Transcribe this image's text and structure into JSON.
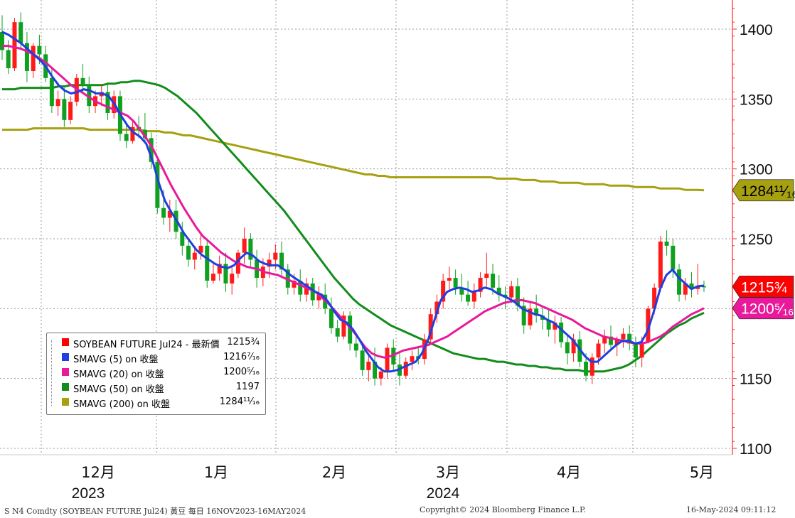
{
  "chart_data": {
    "type": "candlestick",
    "y_axis": {
      "ticks": [
        1100,
        1150,
        1200,
        1250,
        1300,
        1350,
        1400
      ],
      "ylim": [
        1095,
        1420
      ],
      "side": "right"
    },
    "x_axis": {
      "month_labels": [
        "12月",
        "1月",
        "2月",
        "3月",
        "4月",
        "5月"
      ],
      "year_labels": [
        "2023",
        "2024"
      ]
    },
    "grid": true,
    "legend": {
      "placement": "bottom-left",
      "entries": [
        {
          "name": "SOYBEAN FUTURE Jul24 - 最新價",
          "value": "1215¾",
          "color": "#ff0000"
        },
        {
          "name": "SMAVG (5)  on 收盤",
          "value": "1216⁷⁄₁₆",
          "color": "#1f3fe0"
        },
        {
          "name": "SMAVG (20)  on 收盤",
          "value": "1200⁵⁄₁₆",
          "color": "#e8199a"
        },
        {
          "name": "SMAVG (50)  on 收盤",
          "value": "1197",
          "color": "#128c1c"
        },
        {
          "name": "SMAVG (200)  on 收盤",
          "value": "1284¹¹⁄₁₆",
          "color": "#a7a010"
        }
      ]
    },
    "last_value_tags": [
      {
        "label": "1284¹¹⁄₁₆",
        "value": 1284.69,
        "color": "#a7a010",
        "text_color": "#000000"
      },
      {
        "label": "1215¾",
        "value": 1215.75,
        "color": "#ff0000",
        "text_color": "#ffffff"
      },
      {
        "label": "1200⁵⁄₁₆",
        "value": 1200.31,
        "color": "#e8199a",
        "text_color": "#ffffff"
      }
    ],
    "candles": [
      [
        1398,
        1410,
        1378,
        1385
      ],
      [
        1385,
        1392,
        1368,
        1372
      ],
      [
        1372,
        1408,
        1370,
        1405
      ],
      [
        1405,
        1412,
        1385,
        1390
      ],
      [
        1390,
        1398,
        1362,
        1370
      ],
      [
        1370,
        1390,
        1365,
        1388
      ],
      [
        1388,
        1396,
        1375,
        1382
      ],
      [
        1382,
        1388,
        1362,
        1365
      ],
      [
        1365,
        1372,
        1340,
        1345
      ],
      [
        1345,
        1356,
        1338,
        1350
      ],
      [
        1350,
        1358,
        1330,
        1335
      ],
      [
        1335,
        1352,
        1332,
        1348
      ],
      [
        1348,
        1368,
        1345,
        1365
      ],
      [
        1365,
        1375,
        1355,
        1360
      ],
      [
        1360,
        1366,
        1340,
        1345
      ],
      [
        1345,
        1356,
        1340,
        1352
      ],
      [
        1352,
        1360,
        1345,
        1355
      ],
      [
        1355,
        1362,
        1335,
        1340
      ],
      [
        1340,
        1356,
        1336,
        1352
      ],
      [
        1352,
        1356,
        1320,
        1325
      ],
      [
        1325,
        1332,
        1315,
        1320
      ],
      [
        1320,
        1335,
        1318,
        1330
      ],
      [
        1330,
        1338,
        1322,
        1328
      ],
      [
        1328,
        1340,
        1318,
        1322
      ],
      [
        1322,
        1326,
        1300,
        1305
      ],
      [
        1305,
        1308,
        1268,
        1272
      ],
      [
        1272,
        1285,
        1260,
        1265
      ],
      [
        1265,
        1278,
        1255,
        1270
      ],
      [
        1270,
        1278,
        1250,
        1255
      ],
      [
        1255,
        1262,
        1238,
        1245
      ],
      [
        1245,
        1250,
        1230,
        1235
      ],
      [
        1235,
        1245,
        1228,
        1240
      ],
      [
        1240,
        1254,
        1235,
        1245
      ],
      [
        1245,
        1248,
        1215,
        1220
      ],
      [
        1220,
        1232,
        1218,
        1225
      ],
      [
        1225,
        1238,
        1220,
        1232
      ],
      [
        1232,
        1240,
        1212,
        1218
      ],
      [
        1218,
        1230,
        1210,
        1225
      ],
      [
        1225,
        1242,
        1222,
        1240
      ],
      [
        1240,
        1258,
        1232,
        1250
      ],
      [
        1250,
        1254,
        1230,
        1235
      ],
      [
        1235,
        1242,
        1215,
        1222
      ],
      [
        1222,
        1236,
        1216,
        1230
      ],
      [
        1230,
        1240,
        1222,
        1235
      ],
      [
        1235,
        1246,
        1228,
        1240
      ],
      [
        1240,
        1248,
        1222,
        1228
      ],
      [
        1228,
        1232,
        1210,
        1215
      ],
      [
        1215,
        1225,
        1210,
        1220
      ],
      [
        1220,
        1228,
        1205,
        1210
      ],
      [
        1210,
        1222,
        1205,
        1218
      ],
      [
        1218,
        1222,
        1202,
        1206
      ],
      [
        1206,
        1216,
        1200,
        1210
      ],
      [
        1210,
        1218,
        1196,
        1200
      ],
      [
        1200,
        1208,
        1182,
        1186
      ],
      [
        1186,
        1192,
        1176,
        1180
      ],
      [
        1180,
        1198,
        1178,
        1195
      ],
      [
        1195,
        1198,
        1170,
        1175
      ],
      [
        1175,
        1182,
        1165,
        1170
      ],
      [
        1170,
        1176,
        1152,
        1156
      ],
      [
        1156,
        1168,
        1148,
        1162
      ],
      [
        1162,
        1172,
        1145,
        1150
      ],
      [
        1150,
        1158,
        1145,
        1155
      ],
      [
        1155,
        1175,
        1150,
        1172
      ],
      [
        1172,
        1178,
        1155,
        1160
      ],
      [
        1160,
        1168,
        1145,
        1152
      ],
      [
        1152,
        1165,
        1150,
        1162
      ],
      [
        1162,
        1170,
        1156,
        1166
      ],
      [
        1166,
        1172,
        1160,
        1164
      ],
      [
        1164,
        1182,
        1160,
        1178
      ],
      [
        1178,
        1200,
        1175,
        1196
      ],
      [
        1196,
        1210,
        1190,
        1205
      ],
      [
        1205,
        1225,
        1200,
        1220
      ],
      [
        1220,
        1230,
        1212,
        1222
      ],
      [
        1222,
        1228,
        1210,
        1215
      ],
      [
        1215,
        1225,
        1205,
        1210
      ],
      [
        1210,
        1220,
        1202,
        1205
      ],
      [
        1205,
        1218,
        1200,
        1212
      ],
      [
        1212,
        1226,
        1208,
        1222
      ],
      [
        1222,
        1240,
        1215,
        1225
      ],
      [
        1225,
        1232,
        1210,
        1215
      ],
      [
        1215,
        1224,
        1205,
        1210
      ],
      [
        1210,
        1216,
        1200,
        1208
      ],
      [
        1208,
        1220,
        1204,
        1216
      ],
      [
        1216,
        1222,
        1198,
        1202
      ],
      [
        1202,
        1208,
        1182,
        1188
      ],
      [
        1188,
        1205,
        1185,
        1200
      ],
      [
        1200,
        1210,
        1190,
        1195
      ],
      [
        1195,
        1202,
        1185,
        1192
      ],
      [
        1192,
        1200,
        1180,
        1185
      ],
      [
        1185,
        1195,
        1175,
        1190
      ],
      [
        1190,
        1194,
        1172,
        1176
      ],
      [
        1176,
        1182,
        1160,
        1168
      ],
      [
        1168,
        1182,
        1162,
        1178
      ],
      [
        1178,
        1184,
        1158,
        1162
      ],
      [
        1162,
        1168,
        1148,
        1152
      ],
      [
        1152,
        1168,
        1146,
        1165
      ],
      [
        1165,
        1178,
        1160,
        1175
      ],
      [
        1175,
        1185,
        1168,
        1180
      ],
      [
        1180,
        1188,
        1170,
        1174
      ],
      [
        1174,
        1180,
        1166,
        1178
      ],
      [
        1178,
        1186,
        1172,
        1182
      ],
      [
        1182,
        1188,
        1170,
        1175
      ],
      [
        1175,
        1180,
        1158,
        1165
      ],
      [
        1165,
        1180,
        1158,
        1176
      ],
      [
        1176,
        1202,
        1175,
        1200
      ],
      [
        1200,
        1218,
        1196,
        1215
      ],
      [
        1215,
        1252,
        1212,
        1248
      ],
      [
        1248,
        1256,
        1238,
        1245
      ],
      [
        1245,
        1250,
        1222,
        1228
      ],
      [
        1228,
        1232,
        1205,
        1210
      ],
      [
        1210,
        1222,
        1206,
        1218
      ],
      [
        1218,
        1226,
        1208,
        1214
      ],
      [
        1214,
        1232,
        1210,
        1216
      ],
      [
        1216,
        1220,
        1212,
        1215.75
      ]
    ],
    "sma5": [
      1398,
      1396,
      1393,
      1390,
      1386,
      1382,
      1378,
      1373,
      1366,
      1360,
      1356,
      1354,
      1355,
      1357,
      1356,
      1354,
      1354,
      1352,
      1346,
      1338,
      1331,
      1326,
      1323,
      1318,
      1306,
      1290,
      1277,
      1269,
      1262,
      1254,
      1248,
      1242,
      1238,
      1235,
      1232,
      1230,
      1229,
      1231,
      1236,
      1240,
      1238,
      1234,
      1232,
      1231,
      1231,
      1228,
      1224,
      1221,
      1218,
      1215,
      1212,
      1210,
      1205,
      1198,
      1192,
      1190,
      1185,
      1178,
      1170,
      1164,
      1158,
      1155,
      1155,
      1156,
      1158,
      1160,
      1162,
      1168,
      1178,
      1192,
      1206,
      1212,
      1214,
      1215,
      1214,
      1212,
      1213,
      1215,
      1214,
      1211,
      1209,
      1207,
      1204,
      1200,
      1198,
      1196,
      1195,
      1192,
      1190,
      1186,
      1182,
      1178,
      1172,
      1166,
      1162,
      1162,
      1166,
      1170,
      1174,
      1177,
      1177,
      1175,
      1176,
      1184,
      1198,
      1214,
      1224,
      1228,
      1222,
      1218,
      1214,
      1216,
      1216.44
    ],
    "sma20": [
      1388,
      1388,
      1387,
      1386,
      1384,
      1382,
      1379,
      1376,
      1372,
      1368,
      1364,
      1360,
      1357,
      1354,
      1351,
      1348,
      1346,
      1344,
      1342,
      1340,
      1338,
      1334,
      1328,
      1322,
      1315,
      1306,
      1297,
      1288,
      1280,
      1272,
      1265,
      1258,
      1252,
      1248,
      1244,
      1240,
      1237,
      1234,
      1232,
      1230,
      1229,
      1228,
      1226,
      1225,
      1224,
      1222,
      1220,
      1218,
      1216,
      1214,
      1212,
      1208,
      1204,
      1199,
      1194,
      1189,
      1184,
      1178,
      1172,
      1168,
      1166,
      1165,
      1166,
      1168,
      1170,
      1171,
      1172,
      1173,
      1174,
      1176,
      1178,
      1180,
      1183,
      1186,
      1189,
      1192,
      1195,
      1198,
      1200,
      1202,
      1204,
      1205,
      1206,
      1206,
      1205,
      1204,
      1202,
      1200,
      1198,
      1196,
      1194,
      1192,
      1189,
      1186,
      1184,
      1182,
      1180,
      1179,
      1178,
      1177,
      1176,
      1175,
      1175,
      1176,
      1178,
      1180,
      1183,
      1187,
      1190,
      1193,
      1196,
      1198,
      1200.31
    ],
    "sma50": [
      1357,
      1357,
      1357,
      1358,
      1358,
      1358,
      1358,
      1358,
      1358,
      1359,
      1359,
      1360,
      1360,
      1360,
      1360,
      1360,
      1360,
      1361,
      1361,
      1362,
      1362,
      1363,
      1363,
      1362,
      1361,
      1360,
      1358,
      1355,
      1352,
      1348,
      1344,
      1340,
      1335,
      1330,
      1325,
      1320,
      1315,
      1310,
      1305,
      1300,
      1295,
      1290,
      1285,
      1280,
      1275,
      1270,
      1264,
      1258,
      1252,
      1246,
      1240,
      1234,
      1228,
      1222,
      1217,
      1212,
      1207,
      1203,
      1200,
      1197,
      1194,
      1191,
      1188,
      1186,
      1184,
      1182,
      1180,
      1178,
      1176,
      1174,
      1172,
      1170,
      1168,
      1167,
      1166,
      1165,
      1164,
      1164,
      1163,
      1162,
      1162,
      1161,
      1160,
      1160,
      1159,
      1159,
      1158,
      1158,
      1157,
      1157,
      1156,
      1156,
      1156,
      1155,
      1155,
      1155,
      1155,
      1156,
      1157,
      1158,
      1160,
      1163,
      1166,
      1170,
      1174,
      1178,
      1182,
      1185,
      1188,
      1190,
      1193,
      1195,
      1197
    ],
    "sma200": [
      1328,
      1328,
      1328,
      1328,
      1328,
      1329,
      1329,
      1329,
      1329,
      1329,
      1329,
      1329,
      1329,
      1329,
      1328,
      1328,
      1328,
      1328,
      1328,
      1328,
      1328,
      1328,
      1328,
      1327,
      1327,
      1327,
      1326,
      1326,
      1325,
      1324,
      1324,
      1323,
      1322,
      1321,
      1320,
      1319,
      1318,
      1317,
      1316,
      1315,
      1314,
      1313,
      1312,
      1311,
      1310,
      1309,
      1308,
      1307,
      1306,
      1305,
      1304,
      1303,
      1302,
      1301,
      1300,
      1299,
      1298,
      1297,
      1296,
      1296,
      1295,
      1295,
      1294,
      1294,
      1294,
      1294,
      1294,
      1294,
      1294,
      1294,
      1294,
      1294,
      1294,
      1294,
      1294,
      1294,
      1294,
      1294,
      1294,
      1293,
      1293,
      1293,
      1293,
      1292,
      1292,
      1292,
      1291,
      1291,
      1291,
      1290,
      1290,
      1290,
      1290,
      1289,
      1289,
      1289,
      1289,
      1288,
      1288,
      1288,
      1288,
      1287,
      1287,
      1287,
      1287,
      1286,
      1286,
      1286,
      1286,
      1285,
      1285,
      1285,
      1284.69
    ]
  },
  "footer": {
    "left": "S N4 Comdty (SOYBEAN FUTURE    Jul24) 黃豆  每日 16NOV2023-16MAY2024",
    "center": "Copyright© 2024 Bloomberg Finance L.P.",
    "right": "16-May-2024 09:11:12"
  }
}
